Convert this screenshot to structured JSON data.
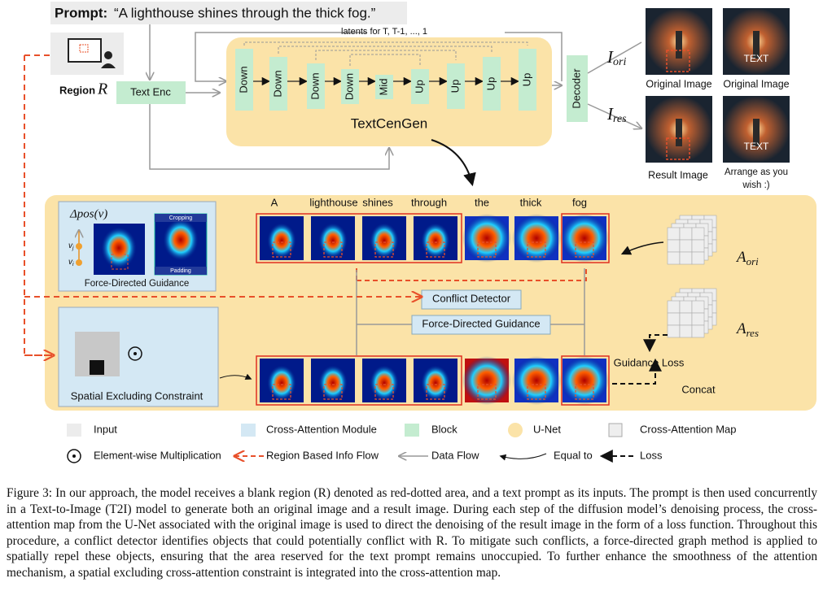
{
  "prompt": {
    "label": "Prompt:",
    "text": "“A lighthouse shines through the thick fog.”"
  },
  "region": {
    "label": "Region",
    "symbol": "R"
  },
  "latents_label": "latents for T, T-1, ..., 1",
  "text_enc": "Text Enc",
  "blocks": [
    "Down",
    "Down",
    "Down",
    "Down",
    "Mid",
    "Up",
    "Up",
    "Up",
    "Up"
  ],
  "unet_label": "TextCenGen",
  "decoder": "Decoder",
  "i_ori": {
    "main": "I",
    "sub": "ori"
  },
  "i_res": {
    "main": "I",
    "sub": "res"
  },
  "image_text": [
    "TEXT",
    "TEXT"
  ],
  "image_labels": [
    "Original Image",
    "Original Image",
    "Result Image"
  ],
  "arrange_label": [
    "Arrange as you",
    "wish :)"
  ],
  "fdg_panel": {
    "delta": "Δpos(v)",
    "vj": "v",
    "vj_sub": "j",
    "vi": "v",
    "vi_sub": "i",
    "cropping": "Cropping",
    "padding": "Padding",
    "label": "Force-Directed Guidance"
  },
  "words": [
    "A",
    "lighthouse",
    "shines",
    "through",
    "the",
    "thick",
    "fog"
  ],
  "a_ori": {
    "main": "A",
    "sub": "ori"
  },
  "a_res": {
    "main": "A",
    "sub": "res"
  },
  "conflict_detector": "Conflict Detector",
  "force_guidance": "Force-Directed Guidance",
  "guidance_loss": "Guidance Loss",
  "concat": "Concat",
  "spatial_label": "Spatial Excluding Constraint",
  "legend": [
    "Input",
    "Cross-Attention Module",
    "Block",
    "U-Net",
    "Cross-Attention Map",
    "Element-wise Multiplication",
    "Region Based Info Flow",
    "Data Flow",
    "Equal to",
    "Loss"
  ],
  "caption": "Figure 3: In our approach, the model receives a blank region (R) denoted as red-dotted area, and a text prompt as its inputs. The prompt is then used concurrently in a Text-to-Image (T2I) model to generate both an original image and a result image. During each step of the diffusion model’s denoising process, the cross-attention map from the U-Net associated with the original image is used to direct the denoising of the result image in the form of a loss function. Throughout this procedure, a conflict detector identifies objects that could potentially conflict with R. To mitigate such conflicts, a force-directed graph method is applied to spatially repel these objects, ensuring that the area reserved for the text prompt remains unoccupied. To further enhance the smoothness of the attention mechanism, a spatial excluding cross-attention constraint is integrated into the cross-attention map."
}
